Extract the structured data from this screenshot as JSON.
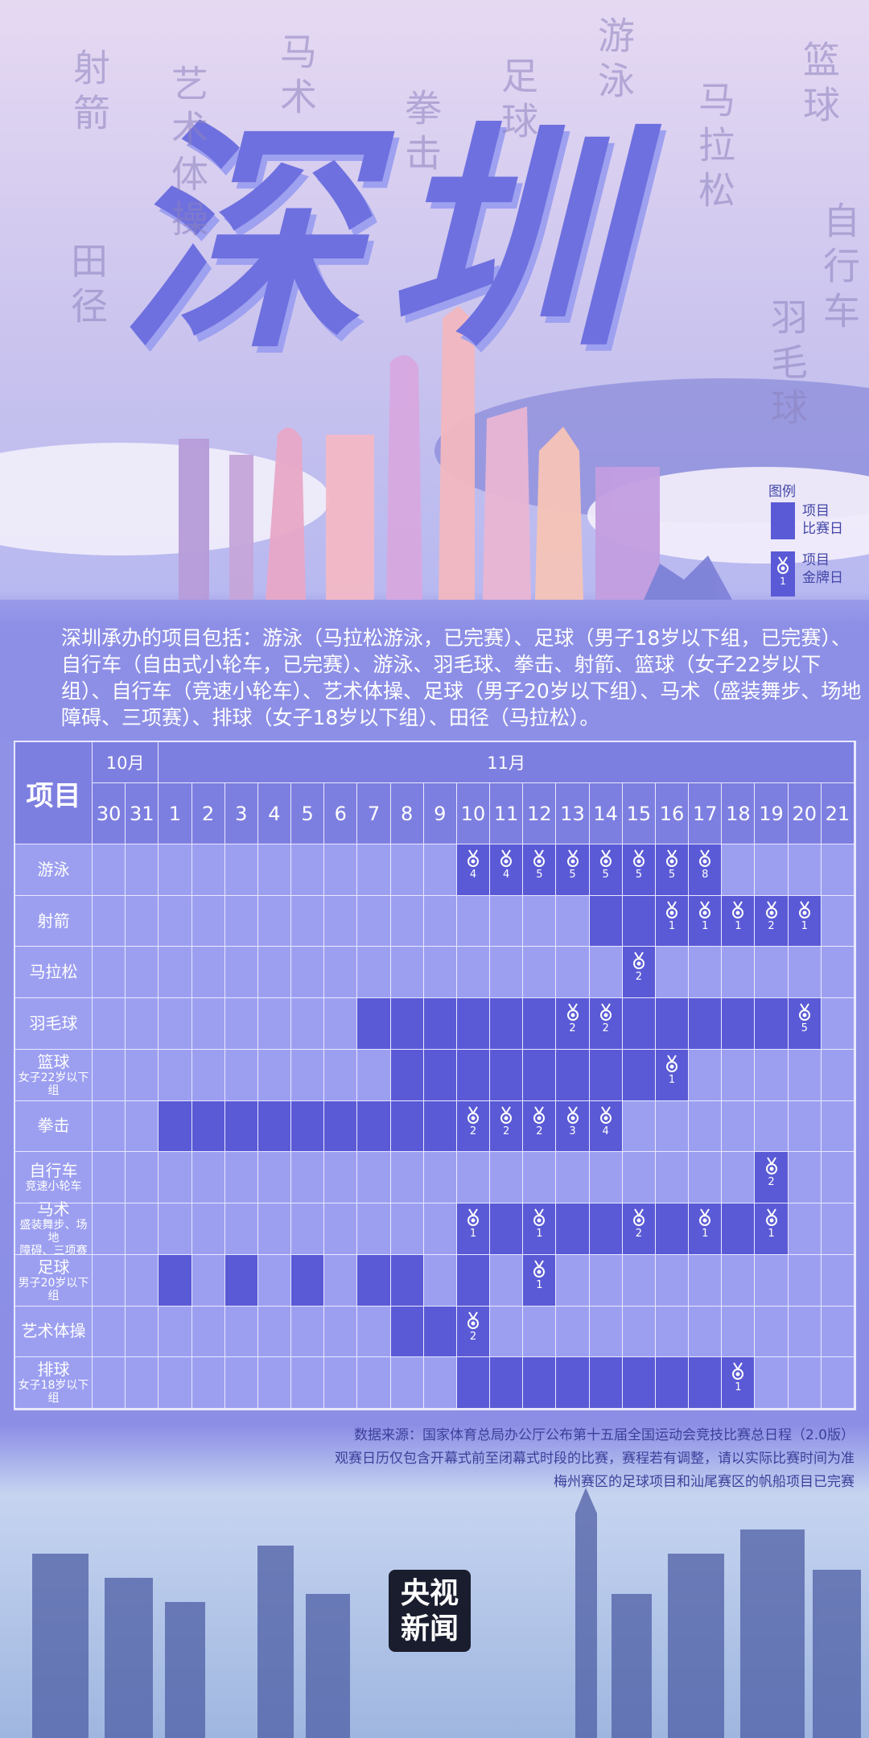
{
  "header": {
    "title": "深圳",
    "background_words": [
      "射箭",
      "艺术体操",
      "马术",
      "拳击",
      "足球",
      "游泳",
      "马拉松",
      "篮球",
      "自行车",
      "羽毛球",
      "田径"
    ]
  },
  "legend": {
    "title": "图例",
    "match_item": [
      "项目",
      "比赛日"
    ],
    "gold_item": [
      "项目",
      "金牌日"
    ],
    "gold_sample": 1
  },
  "intro": "深圳承办的项目包括：游泳（马拉松游泳，已完赛）、足球（男子18岁以下组，已完赛）、自行车（自由式小轮车，已完赛）、游泳、羽毛球、拳击、射箭、篮球（女子22岁以下组）、自行车（竞速小轮车）、艺术体操、足球（男子20岁以下组）、马术（盛装舞步、场地障碍、三项赛）、排球（女子18岁以下组）、田径（马拉松）。",
  "table": {
    "corner": "项目",
    "months": [
      "10月",
      "11月"
    ],
    "days": [
      30,
      31,
      1,
      2,
      3,
      4,
      5,
      6,
      7,
      8,
      9,
      10,
      11,
      12,
      13,
      14,
      15,
      16,
      17,
      18,
      19,
      20,
      21
    ],
    "rows": [
      {
        "name": [
          "游泳"
        ],
        "match_days": [
          10,
          11,
          12,
          13,
          14,
          15,
          16,
          17
        ],
        "golds": [
          {
            "day": 10,
            "count": 4
          },
          {
            "day": 11,
            "count": 4
          },
          {
            "day": 12,
            "count": 5
          },
          {
            "day": 13,
            "count": 5
          },
          {
            "day": 14,
            "count": 5
          },
          {
            "day": 15,
            "count": 5
          },
          {
            "day": 16,
            "count": 5
          },
          {
            "day": 17,
            "count": 8
          }
        ]
      },
      {
        "name": [
          "射箭"
        ],
        "match_days": [
          14,
          15,
          16,
          17,
          18,
          19,
          20
        ],
        "golds": [
          {
            "day": 16,
            "count": 1
          },
          {
            "day": 17,
            "count": 1
          },
          {
            "day": 18,
            "count": 1
          },
          {
            "day": 19,
            "count": 2
          },
          {
            "day": 20,
            "count": 1
          }
        ]
      },
      {
        "name": [
          "马拉松"
        ],
        "match_days": [
          15
        ],
        "golds": [
          {
            "day": 15,
            "count": 2
          }
        ]
      },
      {
        "name": [
          "羽毛球"
        ],
        "match_days": [
          7,
          8,
          9,
          10,
          11,
          12,
          13,
          14,
          15,
          16,
          17,
          18,
          19,
          20
        ],
        "golds": [
          {
            "day": 13,
            "count": 2
          },
          {
            "day": 14,
            "count": 2
          },
          {
            "day": 20,
            "count": 5
          }
        ]
      },
      {
        "name": [
          "篮球",
          "女子22岁以下组"
        ],
        "match_days": [
          8,
          9,
          10,
          11,
          12,
          13,
          14,
          15,
          16
        ],
        "golds": [
          {
            "day": 16,
            "count": 1
          }
        ]
      },
      {
        "name": [
          "拳击"
        ],
        "match_days": [
          1,
          2,
          3,
          4,
          5,
          6,
          7,
          8,
          9,
          10,
          11,
          12,
          13,
          14
        ],
        "golds": [
          {
            "day": 10,
            "count": 2
          },
          {
            "day": 11,
            "count": 2
          },
          {
            "day": 12,
            "count": 2
          },
          {
            "day": 13,
            "count": 3
          },
          {
            "day": 14,
            "count": 4
          }
        ]
      },
      {
        "name": [
          "自行车",
          "竞速小轮车"
        ],
        "match_days": [
          19
        ],
        "golds": [
          {
            "day": 19,
            "count": 2
          }
        ]
      },
      {
        "name": [
          "马术",
          "盛装舞步、场地",
          "障碍、三项赛"
        ],
        "match_days": [
          10,
          11,
          12,
          13,
          14,
          15,
          16,
          17,
          18,
          19
        ],
        "golds": [
          {
            "day": 10,
            "count": 1
          },
          {
            "day": 12,
            "count": 1
          },
          {
            "day": 15,
            "count": 2
          },
          {
            "day": 17,
            "count": 1
          },
          {
            "day": 19,
            "count": 1
          }
        ]
      },
      {
        "name": [
          "足球",
          "男子20岁以下组"
        ],
        "match_days": [
          1,
          3,
          5,
          7,
          8,
          10,
          12
        ],
        "golds": [
          {
            "day": 12,
            "count": 1
          }
        ]
      },
      {
        "name": [
          "艺术体操"
        ],
        "match_days": [
          8,
          9,
          10
        ],
        "golds": [
          {
            "day": 10,
            "count": 2
          }
        ]
      },
      {
        "name": [
          "排球",
          "女子18岁以下组"
        ],
        "match_days": [
          10,
          11,
          12,
          13,
          14,
          15,
          16,
          17,
          18
        ],
        "golds": [
          {
            "day": 18,
            "count": 1
          }
        ]
      }
    ]
  },
  "footer": {
    "notes": [
      "数据来源：国家体育总局办公厅公布第十五届全国运动会竞技比赛总日程（2.0版）",
      "观赛日历仅包含开幕式前至闭幕式时段的比赛，赛程若有调整，请以实际比赛时间为准",
      "梅州赛区的足球项目和汕尾赛区的帆船项目已完赛"
    ],
    "logo": [
      "央视",
      "新闻"
    ]
  }
}
